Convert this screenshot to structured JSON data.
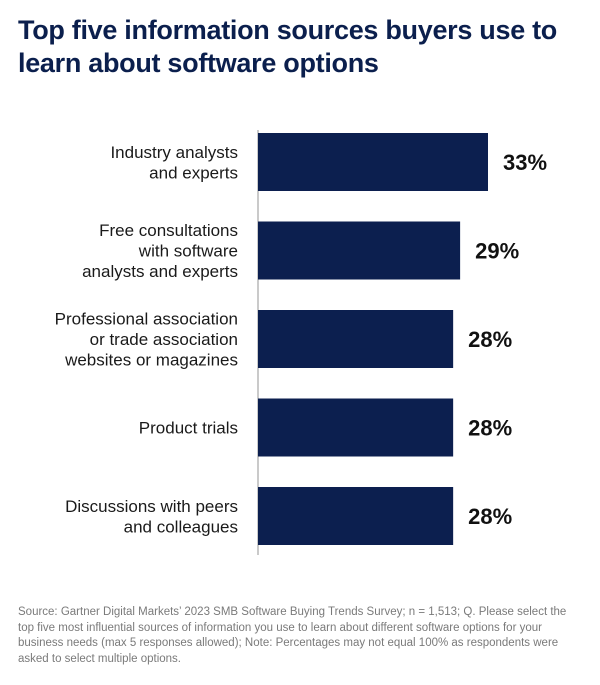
{
  "title": "Top five information sources buyers use to learn about software options",
  "footnote": "Source: Gartner Digital Markets’ 2023 SMB Software Buying Trends Survey; n = 1,513; Q. Please select the top five most influential sources of information you use to learn about different software options for your business needs (max 5 responses allowed); Note: Percentages may not equal 100% as respondents were asked to select multiple options.",
  "colors": {
    "bar": "#0c1f4f",
    "axis": "#b8b8b8",
    "title": "#0b1f4d"
  },
  "chart_data": {
    "type": "bar",
    "orientation": "horizontal",
    "categories": [
      [
        "Industry analysts",
        "and experts"
      ],
      [
        "Free consultations",
        "with software",
        "analysts and experts"
      ],
      [
        "Professional association",
        "or trade association",
        "websites or magazines"
      ],
      [
        "Product trials"
      ],
      [
        "Discussions with peers",
        "and colleagues"
      ]
    ],
    "values": [
      33,
      29,
      28,
      28,
      28
    ],
    "value_labels": [
      "33%",
      "29%",
      "28%",
      "28%",
      "28%"
    ],
    "unit": "%",
    "xlim": [
      0,
      33
    ],
    "grid": false
  }
}
